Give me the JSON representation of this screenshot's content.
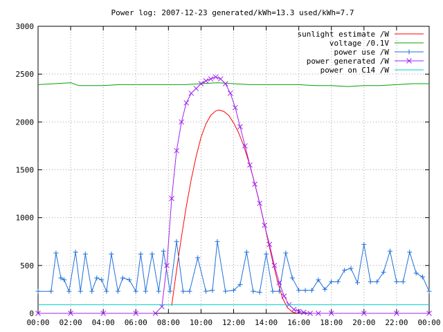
{
  "chart_data": {
    "type": "line",
    "title": "Power log: 2007-12-23 generated/kWh=13.3 used/kWh=7.7",
    "xlabel": "",
    "ylabel": "",
    "xlim": [
      0,
      24
    ],
    "ylim": [
      0,
      3000
    ],
    "x_ticks": [
      "00:00",
      "02:00",
      "04:00",
      "06:00",
      "08:00",
      "10:00",
      "12:00",
      "14:00",
      "16:00",
      "18:00",
      "20:00",
      "22:00",
      "00:00"
    ],
    "y_ticks": [
      "0",
      "500",
      "1000",
      "1500",
      "2000",
      "2500",
      "3000"
    ],
    "grid": true,
    "legend_position": "top-right",
    "series": [
      {
        "name": "sunlight estimate /W",
        "color": "#ff0000",
        "marker": "none",
        "x": [
          8.2,
          8.5,
          8.8,
          9.1,
          9.4,
          9.7,
          10.0,
          10.3,
          10.6,
          10.9,
          11.1,
          11.4,
          11.7,
          12.0,
          12.3,
          12.6,
          12.9,
          13.2,
          13.5,
          13.8,
          14.1,
          14.4,
          14.7,
          15.0,
          15.3,
          15.6,
          15.9
        ],
        "values": [
          80,
          450,
          800,
          1120,
          1400,
          1640,
          1840,
          1980,
          2070,
          2115,
          2125,
          2110,
          2070,
          1990,
          1890,
          1760,
          1600,
          1420,
          1220,
          1000,
          770,
          540,
          330,
          160,
          60,
          15,
          0
        ]
      },
      {
        "name": "voltage /0.1V",
        "color": "#00a000",
        "marker": "none",
        "x": [
          0,
          1,
          2,
          2.5,
          3,
          4,
          5,
          6,
          7,
          8,
          9,
          10,
          11,
          12,
          13,
          14,
          15,
          16,
          17,
          18,
          19,
          20,
          21,
          22,
          23,
          24
        ],
        "values": [
          2390,
          2400,
          2410,
          2380,
          2380,
          2380,
          2390,
          2390,
          2390,
          2390,
          2390,
          2400,
          2410,
          2400,
          2390,
          2390,
          2390,
          2390,
          2380,
          2380,
          2370,
          2380,
          2380,
          2390,
          2400,
          2400
        ]
      },
      {
        "name": "power use /W",
        "color": "#1e6fd9",
        "marker": "plus",
        "x": [
          0,
          0.8,
          1.1,
          1.4,
          1.6,
          1.9,
          2.3,
          2.6,
          2.9,
          3.3,
          3.6,
          3.9,
          4.2,
          4.5,
          4.9,
          5.2,
          5.6,
          6.0,
          6.3,
          6.6,
          7.0,
          7.4,
          7.7,
          8.1,
          8.5,
          8.9,
          9.3,
          9.8,
          10.3,
          10.7,
          11.0,
          11.5,
          12.0,
          12.4,
          12.8,
          13.2,
          13.6,
          14.0,
          14.4,
          14.8,
          15.2,
          15.6,
          16.0,
          16.4,
          16.8,
          17.2,
          17.6,
          18.0,
          18.4,
          18.8,
          19.2,
          19.6,
          20.0,
          20.4,
          20.8,
          21.2,
          21.6,
          22.0,
          22.4,
          22.8,
          23.2,
          23.6,
          24
        ],
        "values": [
          230,
          230,
          630,
          370,
          350,
          230,
          640,
          230,
          620,
          230,
          370,
          350,
          230,
          620,
          230,
          370,
          350,
          230,
          620,
          230,
          620,
          230,
          650,
          230,
          750,
          230,
          230,
          580,
          230,
          240,
          750,
          230,
          240,
          300,
          640,
          230,
          220,
          620,
          230,
          230,
          630,
          370,
          240,
          240,
          240,
          350,
          250,
          330,
          330,
          450,
          470,
          320,
          720,
          330,
          330,
          430,
          650,
          330,
          330,
          640,
          420,
          380,
          230
        ]
      },
      {
        "name": "power generated /W",
        "color": "#a020f0",
        "marker": "cross",
        "x": [
          0,
          2,
          4,
          6,
          7.2,
          7.6,
          7.9,
          8.2,
          8.5,
          8.8,
          9.1,
          9.4,
          9.7,
          10.0,
          10.3,
          10.6,
          10.9,
          11.2,
          11.5,
          11.8,
          12.1,
          12.4,
          12.7,
          13.0,
          13.3,
          13.6,
          13.9,
          14.2,
          14.5,
          14.8,
          15.1,
          15.4,
          15.7,
          16.0,
          16.3,
          16.7,
          17.2,
          18,
          20,
          22,
          24
        ],
        "values": [
          0,
          0,
          0,
          0,
          0,
          70,
          500,
          1200,
          1700,
          2000,
          2200,
          2300,
          2350,
          2400,
          2430,
          2450,
          2470,
          2450,
          2400,
          2300,
          2150,
          1950,
          1750,
          1550,
          1350,
          1150,
          920,
          720,
          500,
          320,
          180,
          90,
          40,
          20,
          10,
          0,
          0,
          0,
          0,
          0,
          0
        ]
      },
      {
        "name": "power on C14 /W",
        "color": "#00cccc",
        "marker": "none",
        "x": [
          0,
          24
        ],
        "values": [
          90,
          90
        ]
      }
    ]
  }
}
